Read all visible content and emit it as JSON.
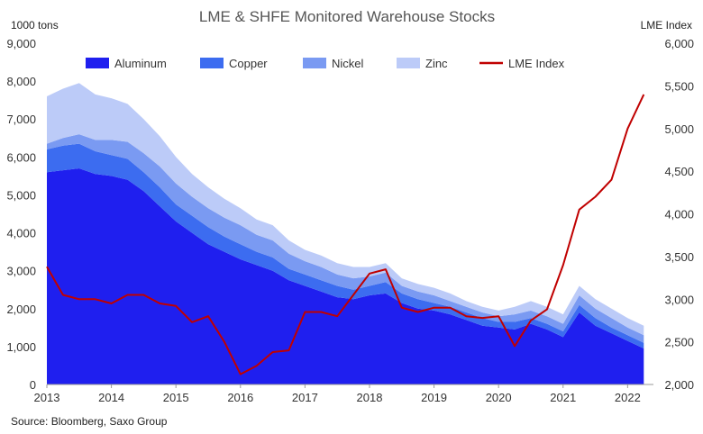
{
  "chart_data": {
    "type": "area",
    "title": "LME & SHFE Monitored Warehouse Stocks",
    "left_unit": "1000 tons",
    "right_unit": "LME Index",
    "source": "Source: Bloomberg, Saxo Group",
    "x_ticks": [
      "2013",
      "2014",
      "2015",
      "2016",
      "2017",
      "2018",
      "2019",
      "2020",
      "2021",
      "2022"
    ],
    "y_left_ticks": [
      "0",
      "1,000",
      "2,000",
      "3,000",
      "4,000",
      "5,000",
      "6,000",
      "7,000",
      "8,000",
      "9,000"
    ],
    "y_right_ticks": [
      "2,000",
      "2,500",
      "3,000",
      "3,500",
      "4,000",
      "4,500",
      "5,000",
      "5,500",
      "6,000"
    ],
    "ylim_left": [
      0,
      9000
    ],
    "ylim_right": [
      2000,
      6000
    ],
    "xlim": [
      2013.0,
      2022.4
    ],
    "legend_position": "top",
    "stacked": true,
    "x": [
      2013.0,
      2013.25,
      2013.5,
      2013.75,
      2014.0,
      2014.25,
      2014.5,
      2014.75,
      2015.0,
      2015.25,
      2015.5,
      2015.75,
      2016.0,
      2016.25,
      2016.5,
      2016.75,
      2017.0,
      2017.25,
      2017.5,
      2017.75,
      2018.0,
      2018.25,
      2018.5,
      2018.75,
      2019.0,
      2019.25,
      2019.5,
      2019.75,
      2020.0,
      2020.25,
      2020.5,
      2020.75,
      2021.0,
      2021.25,
      2021.5,
      2021.75,
      2022.0,
      2022.25
    ],
    "series": [
      {
        "name": "Aluminum",
        "color": "#1f1fef",
        "values": [
          5600,
          5650,
          5700,
          5550,
          5500,
          5400,
          5100,
          4700,
          4300,
          4000,
          3700,
          3500,
          3300,
          3150,
          3000,
          2750,
          2600,
          2450,
          2300,
          2250,
          2350,
          2400,
          2150,
          2000,
          1950,
          1850,
          1700,
          1550,
          1500,
          1450,
          1600,
          1450,
          1250,
          1900,
          1550,
          1350,
          1150,
          950
        ]
      },
      {
        "name": "Copper",
        "color": "#3c6cf0",
        "values": [
          600,
          650,
          650,
          600,
          550,
          550,
          500,
          500,
          450,
          450,
          450,
          400,
          400,
          350,
          350,
          300,
          300,
          300,
          300,
          250,
          250,
          300,
          250,
          250,
          200,
          200,
          200,
          200,
          150,
          200,
          150,
          150,
          150,
          200,
          200,
          150,
          150,
          150
        ]
      },
      {
        "name": "Nickel",
        "color": "#7a9af2",
        "values": [
          150,
          200,
          250,
          300,
          400,
          450,
          500,
          550,
          550,
          500,
          500,
          500,
          500,
          450,
          450,
          400,
          350,
          350,
          300,
          300,
          250,
          250,
          200,
          200,
          200,
          150,
          150,
          150,
          150,
          200,
          200,
          200,
          200,
          250,
          250,
          250,
          200,
          200
        ]
      },
      {
        "name": "Zinc",
        "color": "#bccbf8",
        "values": [
          1250,
          1300,
          1350,
          1200,
          1100,
          1000,
          900,
          800,
          700,
          600,
          550,
          500,
          450,
          400,
          400,
          350,
          300,
          300,
          300,
          300,
          250,
          250,
          200,
          200,
          200,
          200,
          150,
          150,
          150,
          200,
          250,
          250,
          250,
          250,
          250,
          250,
          250,
          250
        ]
      },
      {
        "name": "LME Index",
        "color": "#c00000",
        "axis": "right",
        "values": [
          3380,
          3050,
          3000,
          3000,
          2950,
          3050,
          3050,
          2950,
          2920,
          2730,
          2800,
          2500,
          2120,
          2220,
          2380,
          2400,
          2850,
          2850,
          2800,
          3050,
          3300,
          3350,
          2900,
          2850,
          2900,
          2900,
          2800,
          2780,
          2800,
          2450,
          2750,
          2880,
          3400,
          4050,
          4200,
          4400,
          5000,
          5400
        ]
      }
    ]
  }
}
